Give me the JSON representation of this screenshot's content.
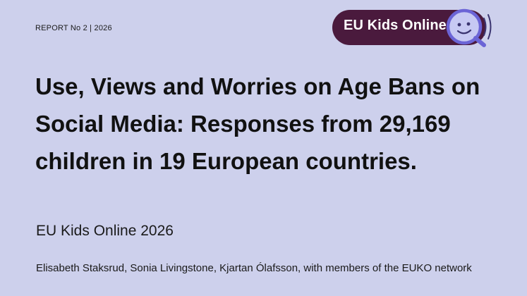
{
  "header": {
    "report_label": "REPORT No 2 | 2026",
    "logo_text": "EU Kids Online",
    "logo_icon": "smiley-magnifier-icon",
    "brand_colors": {
      "pill": "#4a1a3d",
      "icon_face": "#c7c9f3",
      "icon_outline": "#6b64d6",
      "background": "#cdd0ec"
    }
  },
  "main": {
    "title": "Use, Views and Worries on Age Bans on Social Media: Responses from 29,169 children in 19 European countries.",
    "subtitle": "EU Kids Online 2026",
    "authors": "Elisabeth Staksrud, Sonia Livingstone, Kjartan Ólafsson, with members of the EUKO network"
  }
}
